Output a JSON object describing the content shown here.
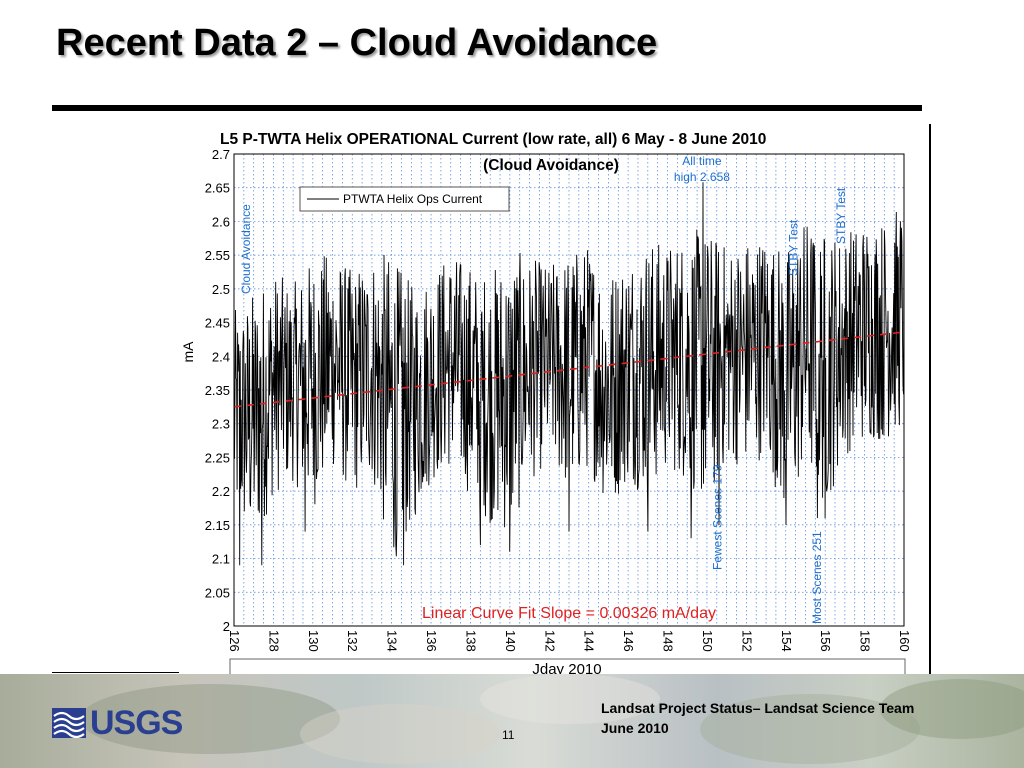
{
  "slide": {
    "title": "Recent Data 2 – Cloud Avoidance",
    "footer_line1": "Landsat Project Status– Landsat Science Team",
    "footer_line2": "June 2010",
    "page_number": "11",
    "logo_text": "USGS",
    "logo_icon": "usgs-wave-icon"
  },
  "chart_data": {
    "type": "line",
    "title": "L5 P-TWTA Helix OPERATIONAL Current (low rate, all) 6 May - 8 June 2010",
    "subtitle": "(Cloud Avoidance)",
    "xlabel": "Jday 2010",
    "ylabel": "mA",
    "xlim": [
      126,
      160
    ],
    "ylim": [
      2,
      2.7
    ],
    "x_ticks": [
      126,
      128,
      130,
      132,
      134,
      136,
      138,
      140,
      142,
      144,
      146,
      148,
      150,
      152,
      154,
      156,
      158,
      160
    ],
    "y_ticks": [
      2,
      2.05,
      2.1,
      2.15,
      2.2,
      2.25,
      2.3,
      2.35,
      2.4,
      2.45,
      2.5,
      2.55,
      2.6,
      2.65,
      2.7
    ],
    "grid": true,
    "legend": {
      "placement": "top-left",
      "entries": [
        "PTWTA Helix Ops Current"
      ]
    },
    "series": [
      {
        "name": "PTWTA Helix Ops Current",
        "color": "#000000",
        "band_low": [
          [
            126,
            2.16
          ],
          [
            127,
            2.12
          ],
          [
            128,
            2.2
          ],
          [
            129,
            2.22
          ],
          [
            130,
            2.18
          ],
          [
            131,
            2.24
          ],
          [
            132,
            2.2
          ],
          [
            133,
            2.22
          ],
          [
            134,
            2.1
          ],
          [
            135,
            2.15
          ],
          [
            136,
            2.22
          ],
          [
            137,
            2.24
          ],
          [
            138,
            2.2
          ],
          [
            139,
            2.16
          ],
          [
            140,
            2.14
          ],
          [
            141,
            2.22
          ],
          [
            142,
            2.25
          ],
          [
            143,
            2.2
          ],
          [
            144,
            2.24
          ],
          [
            145,
            2.18
          ],
          [
            146,
            2.22
          ],
          [
            147,
            2.2
          ],
          [
            148,
            2.24
          ],
          [
            149,
            2.22
          ],
          [
            150,
            2.18
          ],
          [
            151,
            2.25
          ],
          [
            152,
            2.24
          ],
          [
            153,
            2.26
          ],
          [
            154,
            2.16
          ],
          [
            155,
            2.24
          ],
          [
            156,
            2.18
          ],
          [
            157,
            2.26
          ],
          [
            158,
            2.28
          ],
          [
            159,
            2.28
          ],
          [
            160,
            2.3
          ]
        ],
        "band_high": [
          [
            126,
            2.46
          ],
          [
            127,
            2.49
          ],
          [
            128,
            2.52
          ],
          [
            129,
            2.5
          ],
          [
            130,
            2.54
          ],
          [
            131,
            2.55
          ],
          [
            132,
            2.52
          ],
          [
            133,
            2.55
          ],
          [
            134,
            2.54
          ],
          [
            135,
            2.5
          ],
          [
            136,
            2.52
          ],
          [
            137,
            2.55
          ],
          [
            138,
            2.53
          ],
          [
            139,
            2.52
          ],
          [
            140,
            2.55
          ],
          [
            141,
            2.54
          ],
          [
            142,
            2.53
          ],
          [
            143,
            2.55
          ],
          [
            144,
            2.56
          ],
          [
            145,
            2.52
          ],
          [
            146,
            2.55
          ],
          [
            147,
            2.57
          ],
          [
            148,
            2.56
          ],
          [
            149,
            2.58
          ],
          [
            150,
            2.58
          ],
          [
            151,
            2.56
          ],
          [
            152,
            2.57
          ],
          [
            153,
            2.58
          ],
          [
            154,
            2.55
          ],
          [
            155,
            2.6
          ],
          [
            156,
            2.58
          ],
          [
            157,
            2.58
          ],
          [
            158,
            2.6
          ],
          [
            159,
            2.6
          ],
          [
            160,
            2.62
          ]
        ],
        "dips": [
          [
            126.3,
            2.09
          ],
          [
            127.4,
            2.09
          ],
          [
            129.6,
            2.14
          ],
          [
            134.2,
            2.12
          ],
          [
            134.6,
            2.09
          ],
          [
            138.5,
            2.12
          ],
          [
            140.0,
            2.11
          ],
          [
            143.0,
            2.14
          ],
          [
            147.0,
            2.14
          ],
          [
            149.2,
            2.13
          ],
          [
            150.6,
            2.15
          ],
          [
            154.0,
            2.15
          ],
          [
            155.6,
            2.16
          ],
          [
            156.0,
            2.16
          ]
        ],
        "peak": [
          149.8,
          2.658
        ]
      },
      {
        "name": "Linear Curve Fit",
        "color": "#e02020",
        "style": "dashed",
        "points": [
          [
            126,
            2.325
          ],
          [
            160,
            2.436
          ]
        ]
      }
    ],
    "annotations": [
      {
        "text": "Cloud Avoidance",
        "x": 126.5,
        "color": "#1e6fd0"
      },
      {
        "text": "All time",
        "x": 150,
        "color": "#1e6fd0"
      },
      {
        "text": "high 2.658",
        "x": 150,
        "color": "#1e6fd0"
      },
      {
        "text": "STBY Test",
        "x": 154.3,
        "color": "#1e6fd0"
      },
      {
        "text": "STBY Test",
        "x": 156.7,
        "color": "#1e6fd0"
      },
      {
        "text": "Fewest Scenes 179",
        "x": 151,
        "color": "#1e6fd0"
      },
      {
        "text": "Most Scenes 251",
        "x": 156,
        "color": "#1e6fd0"
      },
      {
        "text": "Linear Curve Fit Slope = 0.00326 mA/day",
        "x": 143,
        "color": "#e02020"
      }
    ]
  }
}
